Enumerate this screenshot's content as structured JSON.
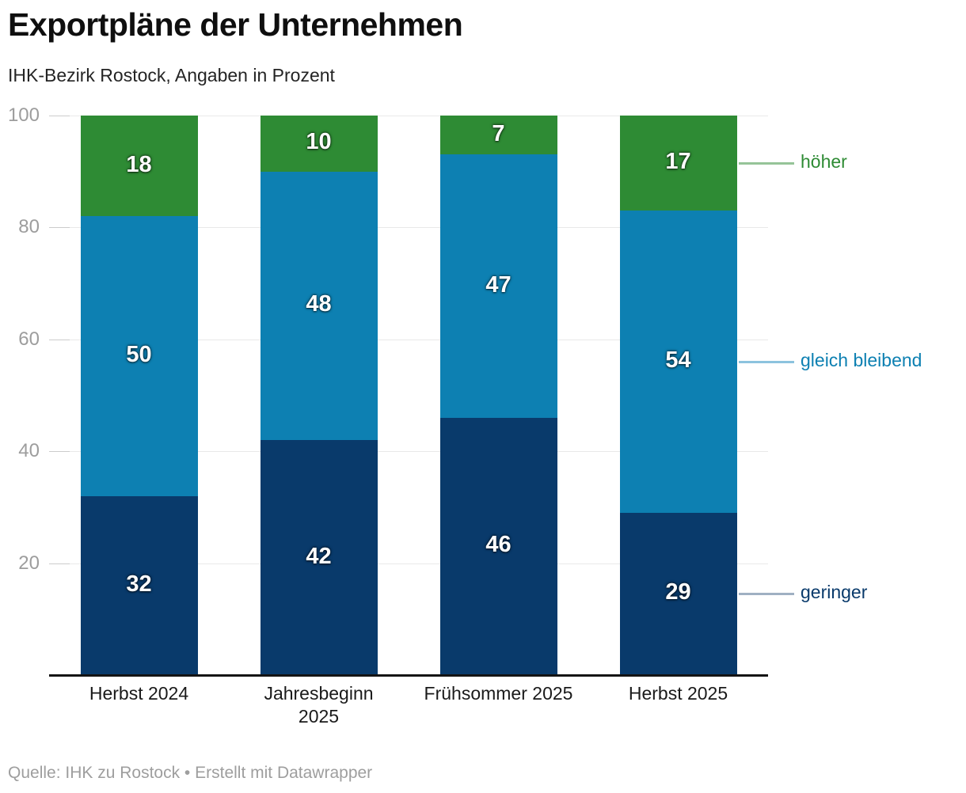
{
  "header": {
    "title": "Exportpläne der Unternehmen",
    "subtitle": "IHK-Bezirk Rostock, Angaben in Prozent"
  },
  "footer": {
    "source": "Quelle: IHK zu Rostock • Erstellt mit Datawrapper"
  },
  "chart_data": {
    "type": "bar",
    "stacked": true,
    "title": "Exportpläne der Unternehmen",
    "subtitle": "IHK-Bezirk Rostock, Angaben in Prozent",
    "categories": [
      "Herbst 2024",
      "Jahresbeginn 2025",
      "Frühsommer 2025",
      "Herbst 2025"
    ],
    "category_display": [
      "Herbst 2024",
      "Jahresbeginn\n2025",
      "Frühsommer 2025",
      "Herbst 2025"
    ],
    "series": [
      {
        "name": "geringer",
        "color": "#093a6b",
        "connector_color": "#9fb0c2",
        "values": [
          32,
          42,
          46,
          29
        ]
      },
      {
        "name": "gleich bleibend",
        "color": "#0d80b2",
        "connector_color": "#8cc3de",
        "values": [
          50,
          48,
          47,
          54
        ]
      },
      {
        "name": "höher",
        "color": "#2e8b34",
        "connector_color": "#95c498",
        "values": [
          18,
          10,
          7,
          17
        ]
      }
    ],
    "ylabel": "",
    "xlabel": "",
    "ylim": [
      0,
      100
    ],
    "yticks": [
      20,
      40,
      60,
      80,
      100
    ],
    "grid": true,
    "legend_position": "right",
    "source": "Quelle: IHK zu Rostock • Erstellt mit Datawrapper"
  }
}
